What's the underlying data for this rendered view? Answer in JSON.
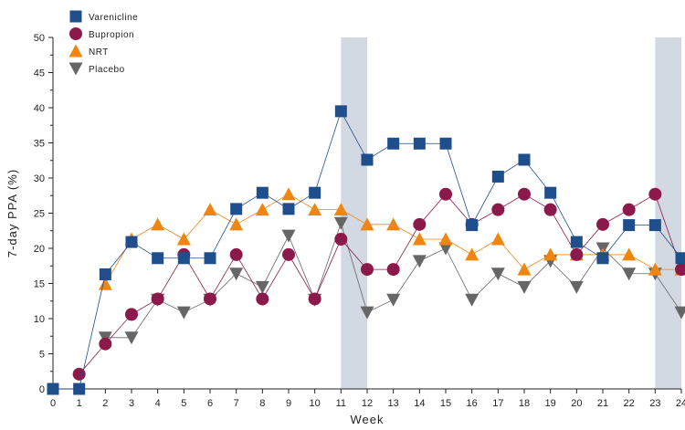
{
  "chart_data": {
    "type": "line",
    "title": "",
    "xlabel": "Week",
    "ylabel": "7-day PPA (%)",
    "xlim": [
      0,
      24
    ],
    "ylim": [
      0,
      50
    ],
    "x_ticks": [
      0,
      1,
      2,
      3,
      4,
      5,
      6,
      7,
      8,
      9,
      10,
      11,
      12,
      13,
      14,
      15,
      16,
      17,
      18,
      19,
      20,
      21,
      22,
      23,
      24
    ],
    "y_ticks": [
      0,
      5,
      10,
      15,
      20,
      25,
      30,
      35,
      40,
      45,
      50
    ],
    "grid": false,
    "legend_position": "top-left",
    "shaded_regions": [
      {
        "x_start": 11,
        "x_end": 12,
        "color": "#d3d9e2"
      },
      {
        "x_start": 23,
        "x_end": 24,
        "color": "#d3d9e2"
      }
    ],
    "series": [
      {
        "name": "Varenicline",
        "marker": "square",
        "color": "#1f4e8c",
        "x": [
          0,
          1,
          2,
          3,
          4,
          5,
          6,
          7,
          8,
          9,
          10,
          11,
          12,
          13,
          14,
          15,
          16,
          17,
          18,
          19,
          20,
          21,
          22,
          23,
          24
        ],
        "values": [
          0,
          0,
          16.3,
          20.9,
          18.6,
          18.6,
          18.6,
          25.6,
          27.9,
          25.6,
          27.9,
          39.5,
          32.6,
          34.9,
          34.9,
          34.9,
          23.3,
          30.2,
          32.6,
          27.9,
          20.9,
          18.6,
          23.3,
          23.3,
          18.6
        ]
      },
      {
        "name": "Bupropion",
        "marker": "circle",
        "color": "#8b1a4a",
        "x": [
          1,
          2,
          3,
          4,
          5,
          6,
          7,
          8,
          9,
          10,
          11,
          12,
          13,
          14,
          15,
          16,
          17,
          18,
          19,
          20,
          21,
          22,
          23,
          24
        ],
        "values": [
          2.1,
          6.4,
          10.6,
          12.8,
          19.1,
          12.8,
          19.1,
          12.8,
          19.1,
          12.8,
          21.3,
          17.0,
          17.0,
          23.4,
          27.7,
          23.4,
          25.5,
          27.7,
          25.5,
          19.1,
          23.4,
          25.5,
          27.7,
          17.0
        ]
      },
      {
        "name": "NRT",
        "marker": "triangle-up",
        "color": "#f0860f",
        "x": [
          2,
          3,
          4,
          5,
          6,
          7,
          8,
          9,
          10,
          11,
          12,
          13,
          14,
          15,
          16,
          17,
          18,
          19,
          20,
          21,
          22,
          23,
          24
        ],
        "values": [
          14.9,
          21.3,
          23.4,
          21.3,
          25.5,
          23.4,
          25.5,
          27.7,
          25.5,
          25.5,
          23.4,
          23.4,
          21.3,
          21.3,
          19.1,
          21.3,
          17.0,
          19.1,
          19.1,
          19.1,
          19.1,
          17.0,
          17.0
        ]
      },
      {
        "name": "Placebo",
        "marker": "triangle-down",
        "color": "#666666",
        "x": [
          2,
          3,
          4,
          5,
          6,
          7,
          8,
          9,
          10,
          11,
          12,
          13,
          14,
          15,
          16,
          17,
          18,
          19,
          20,
          21,
          22,
          23,
          24
        ],
        "values": [
          7.3,
          7.3,
          12.7,
          10.9,
          12.7,
          16.4,
          14.5,
          21.8,
          12.7,
          23.6,
          10.9,
          12.7,
          18.2,
          20.0,
          12.7,
          16.4,
          14.5,
          18.2,
          14.5,
          20.0,
          16.4,
          16.4,
          10.9
        ]
      }
    ]
  }
}
